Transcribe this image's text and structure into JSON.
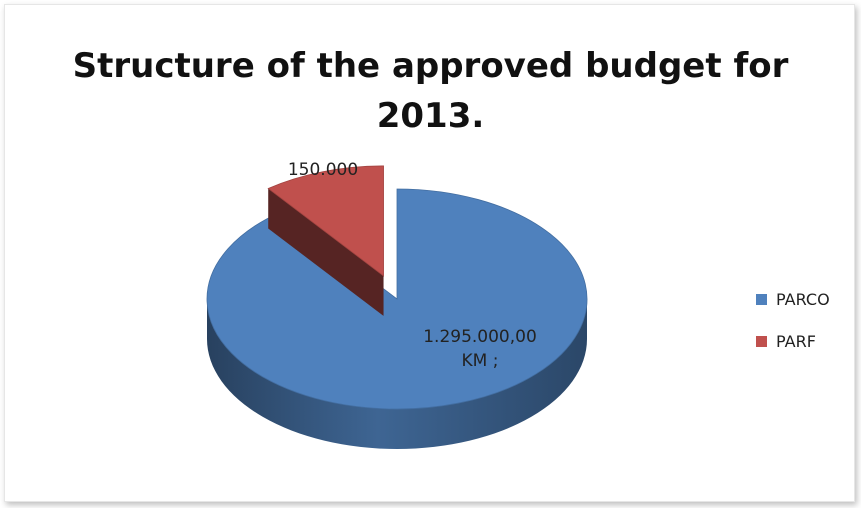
{
  "chart_data": {
    "type": "pie",
    "title": "Structure of the approved budget for 2013.",
    "title_lines": [
      "Structure of the approved budget for",
      "2013."
    ],
    "categories": [
      "PARCO",
      "PARF"
    ],
    "values": [
      1295000,
      150000
    ],
    "data_labels": [
      "1.295.000,00\nKM ;",
      "150.000"
    ],
    "data_label_lines": {
      "parco": [
        "1.295.000,00",
        "KM ;"
      ],
      "parf": [
        "150.000"
      ]
    },
    "legend_position": "right",
    "exploded": "PARF",
    "colors": {
      "PARCO": "#4f81bd",
      "PARF": "#c0504d"
    },
    "style": "3d"
  }
}
